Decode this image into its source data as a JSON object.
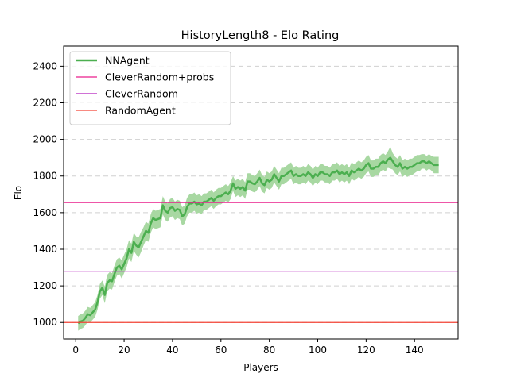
{
  "chart_data": {
    "type": "line",
    "title": "HistoryLength8 - Elo Rating",
    "xlabel": "Players",
    "ylabel": "Elo",
    "xlim": [
      -5,
      158
    ],
    "ylim": [
      910,
      2510
    ],
    "xticks": [
      0,
      20,
      40,
      60,
      80,
      100,
      120,
      140
    ],
    "yticks": [
      1000,
      1200,
      1400,
      1600,
      1800,
      2000,
      2200,
      2400
    ],
    "grid": "horizontal-dashed",
    "legend_position": "top-left",
    "series": [
      {
        "name": "NNAgent",
        "color": "#4caf50",
        "band_color": "#a8d8a2",
        "x": [
          1,
          2,
          3,
          4,
          5,
          6,
          7,
          8,
          9,
          10,
          11,
          12,
          13,
          14,
          15,
          16,
          17,
          18,
          19,
          20,
          21,
          22,
          23,
          24,
          25,
          26,
          27,
          28,
          29,
          30,
          31,
          32,
          33,
          34,
          35,
          36,
          37,
          38,
          39,
          40,
          41,
          42,
          43,
          44,
          45,
          46,
          47,
          48,
          49,
          50,
          51,
          52,
          53,
          54,
          55,
          56,
          57,
          58,
          59,
          60,
          61,
          62,
          63,
          64,
          65,
          66,
          67,
          68,
          69,
          70,
          71,
          72,
          73,
          74,
          75,
          76,
          77,
          78,
          79,
          80,
          81,
          82,
          83,
          84,
          85,
          86,
          87,
          88,
          89,
          90,
          91,
          92,
          93,
          94,
          95,
          96,
          97,
          98,
          99,
          100,
          101,
          102,
          103,
          104,
          105,
          106,
          107,
          108,
          109,
          110,
          111,
          112,
          113,
          114,
          115,
          116,
          117,
          118,
          119,
          120,
          121,
          122,
          123,
          124,
          125,
          126,
          127,
          128,
          129,
          130,
          131,
          132,
          133,
          134,
          135,
          136,
          137,
          138,
          139,
          140,
          141,
          142,
          143,
          144,
          145,
          146,
          147,
          148,
          149,
          150
        ],
        "y": [
          995,
          1005,
          1010,
          1025,
          1045,
          1040,
          1055,
          1070,
          1110,
          1170,
          1190,
          1150,
          1215,
          1230,
          1225,
          1265,
          1300,
          1310,
          1290,
          1320,
          1350,
          1400,
          1380,
          1440,
          1420,
          1410,
          1440,
          1470,
          1500,
          1490,
          1540,
          1570,
          1560,
          1565,
          1570,
          1640,
          1610,
          1600,
          1625,
          1630,
          1610,
          1620,
          1615,
          1580,
          1590,
          1630,
          1650,
          1650,
          1660,
          1645,
          1650,
          1640,
          1660,
          1660,
          1670,
          1680,
          1665,
          1680,
          1690,
          1690,
          1700,
          1710,
          1700,
          1720,
          1760,
          1730,
          1740,
          1730,
          1740,
          1720,
          1770,
          1770,
          1760,
          1755,
          1770,
          1790,
          1760,
          1750,
          1780,
          1770,
          1780,
          1810,
          1790,
          1770,
          1800,
          1800,
          1810,
          1820,
          1830,
          1800,
          1810,
          1800,
          1800,
          1810,
          1800,
          1820,
          1810,
          1790,
          1810,
          1800,
          1820,
          1820,
          1810,
          1810,
          1800,
          1820,
          1820,
          1830,
          1810,
          1820,
          1810,
          1820,
          1800,
          1830,
          1820,
          1830,
          1840,
          1830,
          1840,
          1860,
          1870,
          1840,
          1840,
          1850,
          1850,
          1870,
          1880,
          1870,
          1890,
          1900,
          1880,
          1860,
          1850,
          1870,
          1840,
          1850,
          1840,
          1850,
          1850,
          1860,
          1870,
          1870,
          1880,
          1880,
          1870,
          1880,
          1870,
          1860,
          1860,
          1860
        ],
        "upper": [
          1035,
          1045,
          1050,
          1065,
          1085,
          1080,
          1095,
          1110,
          1150,
          1210,
          1230,
          1195,
          1260,
          1275,
          1270,
          1310,
          1345,
          1355,
          1340,
          1370,
          1400,
          1450,
          1430,
          1490,
          1470,
          1465,
          1495,
          1520,
          1550,
          1540,
          1590,
          1620,
          1610,
          1615,
          1620,
          1690,
          1660,
          1650,
          1675,
          1680,
          1660,
          1670,
          1665,
          1630,
          1640,
          1680,
          1700,
          1700,
          1710,
          1695,
          1700,
          1690,
          1705,
          1705,
          1715,
          1725,
          1710,
          1725,
          1735,
          1735,
          1745,
          1755,
          1745,
          1765,
          1800,
          1775,
          1785,
          1775,
          1785,
          1765,
          1815,
          1815,
          1805,
          1800,
          1815,
          1835,
          1805,
          1795,
          1825,
          1815,
          1825,
          1855,
          1835,
          1815,
          1845,
          1845,
          1855,
          1865,
          1875,
          1845,
          1855,
          1845,
          1845,
          1855,
          1845,
          1865,
          1855,
          1835,
          1855,
          1845,
          1865,
          1865,
          1855,
          1855,
          1845,
          1865,
          1865,
          1875,
          1855,
          1865,
          1855,
          1865,
          1845,
          1875,
          1865,
          1875,
          1885,
          1875,
          1885,
          1905,
          1915,
          1885,
          1885,
          1895,
          1895,
          1915,
          1925,
          1915,
          1935,
          1960,
          1925,
          1905,
          1895,
          1915,
          1885,
          1895,
          1885,
          1895,
          1895,
          1905,
          1915,
          1915,
          1920,
          1920,
          1910,
          1920,
          1910,
          1905,
          1905,
          1905
        ],
        "lower": [
          955,
          965,
          970,
          985,
          1005,
          1000,
          1015,
          1030,
          1070,
          1130,
          1150,
          1105,
          1170,
          1185,
          1180,
          1220,
          1255,
          1265,
          1240,
          1270,
          1300,
          1350,
          1330,
          1390,
          1370,
          1355,
          1385,
          1420,
          1450,
          1440,
          1490,
          1520,
          1510,
          1515,
          1520,
          1590,
          1560,
          1550,
          1575,
          1580,
          1560,
          1570,
          1565,
          1530,
          1540,
          1580,
          1600,
          1600,
          1610,
          1595,
          1600,
          1590,
          1615,
          1615,
          1625,
          1635,
          1620,
          1635,
          1645,
          1645,
          1655,
          1665,
          1655,
          1675,
          1720,
          1685,
          1695,
          1685,
          1695,
          1675,
          1725,
          1725,
          1715,
          1710,
          1725,
          1745,
          1715,
          1705,
          1735,
          1725,
          1735,
          1765,
          1745,
          1725,
          1755,
          1755,
          1765,
          1775,
          1785,
          1755,
          1765,
          1755,
          1755,
          1765,
          1755,
          1775,
          1765,
          1745,
          1765,
          1755,
          1775,
          1775,
          1765,
          1765,
          1755,
          1775,
          1775,
          1785,
          1765,
          1775,
          1765,
          1775,
          1755,
          1785,
          1775,
          1785,
          1795,
          1785,
          1795,
          1815,
          1825,
          1795,
          1795,
          1805,
          1805,
          1825,
          1835,
          1825,
          1845,
          1840,
          1835,
          1815,
          1805,
          1825,
          1795,
          1805,
          1795,
          1805,
          1805,
          1815,
          1825,
          1825,
          1840,
          1840,
          1830,
          1840,
          1830,
          1815,
          1815,
          1815
        ]
      },
      {
        "name": "CleverRandom+probs",
        "type": "hline",
        "value": 1655,
        "color": "#e91e8c"
      },
      {
        "name": "CleverRandom",
        "type": "hline",
        "value": 1280,
        "color": "#b41fbd"
      },
      {
        "name": "RandomAgent",
        "type": "hline",
        "value": 1000,
        "color": "#f44336"
      }
    ]
  }
}
